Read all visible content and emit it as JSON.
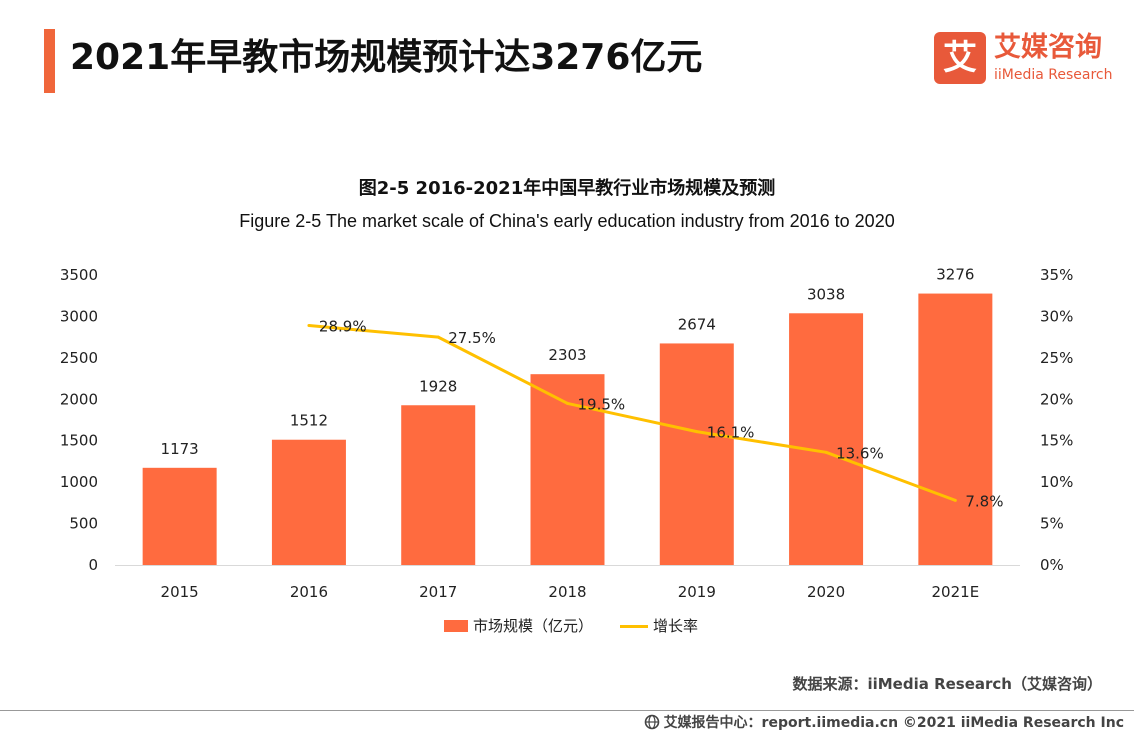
{
  "header": {
    "title": "2021年早教市场规模预计达3276亿元",
    "accent_color": "#F0663B"
  },
  "logo": {
    "glyph": "艾",
    "name_cn": "艾媒咨询",
    "name_en": "iiMedia Research",
    "color": "#E8593A"
  },
  "chart_data": {
    "type": "bar",
    "title": "图2-5 2016-2021年中国早教行业市场规模及预测",
    "subtitle": "Figure 2-5 The market scale of China's early education industry from 2016 to 2020",
    "categories": [
      "2015",
      "2016",
      "2017",
      "2018",
      "2019",
      "2020",
      "2021E"
    ],
    "series": [
      {
        "name": "市场规模（亿元）",
        "type": "bar",
        "axis": "left",
        "color": "#FF6B3F",
        "values": [
          1173,
          1512,
          1928,
          2303,
          2674,
          3038,
          3276
        ],
        "labels": [
          "1173",
          "1512",
          "1928",
          "2303",
          "2674",
          "3038",
          "3276"
        ]
      },
      {
        "name": "增长率",
        "type": "line",
        "axis": "right",
        "color": "#FFC000",
        "values": [
          null,
          28.9,
          27.5,
          19.5,
          16.1,
          13.6,
          7.8
        ],
        "labels": [
          "",
          "28.9%",
          "27.5%",
          "19.5%",
          "16.1%",
          "13.6%",
          "7.8%"
        ]
      }
    ],
    "ylim_left": [
      0,
      3500
    ],
    "yticks_left": [
      "0",
      "500",
      "1000",
      "1500",
      "2000",
      "2500",
      "3000",
      "3500"
    ],
    "ylim_right": [
      0,
      35
    ],
    "yticks_right": [
      "0%",
      "5%",
      "10%",
      "15%",
      "20%",
      "25%",
      "30%",
      "35%"
    ],
    "grid": false,
    "legend_position": "bottom"
  },
  "source": "数据来源：iiMedia Research（艾媒咨询）",
  "footer": {
    "text": "艾媒报告中心：report.iimedia.cn   ©2021  iiMedia Research  Inc"
  }
}
